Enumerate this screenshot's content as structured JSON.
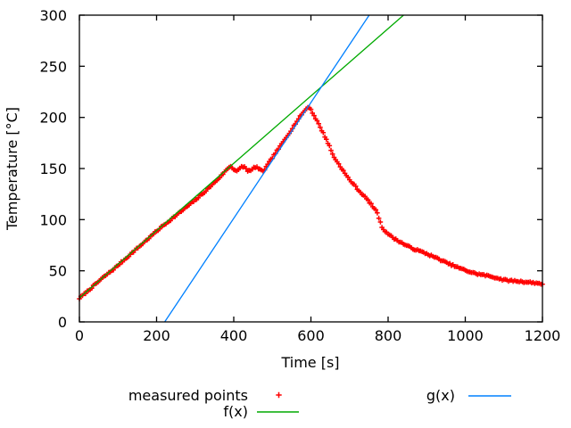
{
  "window": {
    "background": "#ffffff"
  },
  "chart_data": {
    "type": "scatter",
    "title": "",
    "xlabel": "Time [s]",
    "ylabel": "Temperature [°C]",
    "xlim": [
      0,
      1200
    ],
    "ylim": [
      0,
      300
    ],
    "xticks": [
      0,
      200,
      400,
      600,
      800,
      1000,
      1200
    ],
    "yticks": [
      0,
      50,
      100,
      150,
      200,
      250,
      300
    ],
    "grid": false,
    "border_color": "#000000",
    "legend_position": "below-plot",
    "series": [
      {
        "name": "measured points",
        "kind": "points",
        "marker": "plus",
        "color": "#ff0000",
        "anchors": [
          [
            0,
            23
          ],
          [
            30,
            33
          ],
          [
            60,
            43
          ],
          [
            90,
            52
          ],
          [
            120,
            62
          ],
          [
            150,
            72
          ],
          [
            180,
            82
          ],
          [
            210,
            92
          ],
          [
            240,
            101
          ],
          [
            270,
            110
          ],
          [
            300,
            119
          ],
          [
            330,
            129
          ],
          [
            360,
            140
          ],
          [
            375,
            146
          ],
          [
            388,
            151.5
          ],
          [
            392,
            152
          ],
          [
            400,
            149.5
          ],
          [
            407,
            147.5
          ],
          [
            414,
            149
          ],
          [
            421,
            152
          ],
          [
            428,
            151.5
          ],
          [
            436,
            148
          ],
          [
            444,
            147.5
          ],
          [
            451,
            150.5
          ],
          [
            458,
            152
          ],
          [
            466,
            149
          ],
          [
            474,
            147.5
          ],
          [
            480,
            149
          ],
          [
            490,
            155
          ],
          [
            505,
            163.5
          ],
          [
            520,
            171.5
          ],
          [
            535,
            180
          ],
          [
            550,
            188.5
          ],
          [
            565,
            197
          ],
          [
            577,
            203.5
          ],
          [
            586,
            207.5
          ],
          [
            590,
            209.5
          ],
          [
            597,
            210
          ],
          [
            602,
            206
          ],
          [
            610,
            200.5
          ],
          [
            618,
            195
          ],
          [
            626,
            189
          ],
          [
            634,
            183
          ],
          [
            642,
            177
          ],
          [
            650,
            170
          ],
          [
            658,
            162
          ],
          [
            666,
            158
          ],
          [
            674,
            153
          ],
          [
            681,
            149.5
          ],
          [
            690,
            144
          ],
          [
            700,
            139
          ],
          [
            712,
            134
          ],
          [
            725,
            128
          ],
          [
            738,
            123
          ],
          [
            752,
            117
          ],
          [
            765,
            110.5
          ],
          [
            772,
            107
          ],
          [
            776,
            102
          ],
          [
            780,
            97
          ],
          [
            784,
            93
          ],
          [
            788,
            90.5
          ],
          [
            795,
            88
          ],
          [
            805,
            84.5
          ],
          [
            818,
            81
          ],
          [
            832,
            78
          ],
          [
            846,
            75
          ],
          [
            862,
            72
          ],
          [
            880,
            69.5
          ],
          [
            898,
            67
          ],
          [
            916,
            64
          ],
          [
            934,
            61
          ],
          [
            950,
            58
          ],
          [
            966,
            55.5
          ],
          [
            982,
            53
          ],
          [
            1000,
            50.5
          ],
          [
            1015,
            48.5
          ],
          [
            1030,
            47
          ],
          [
            1048,
            45.8
          ],
          [
            1065,
            44.5
          ],
          [
            1082,
            43
          ],
          [
            1100,
            41
          ],
          [
            1118,
            40.3
          ],
          [
            1135,
            39.8
          ],
          [
            1152,
            39.2
          ],
          [
            1168,
            38.6
          ],
          [
            1184,
            38
          ],
          [
            1200,
            37.2
          ]
        ],
        "render": {
          "sample_step": 4,
          "noise_amp": 0.8,
          "noise_seed": 7
        }
      },
      {
        "name": "f(x)",
        "kind": "line",
        "color": "#00aa00",
        "points": [
          [
            0,
            23.5
          ],
          [
            840,
            300
          ]
        ]
      },
      {
        "name": "g(x)",
        "kind": "line",
        "color": "#0080ff",
        "points": [
          [
            221,
            0
          ],
          [
            751,
            300
          ]
        ]
      }
    ]
  }
}
